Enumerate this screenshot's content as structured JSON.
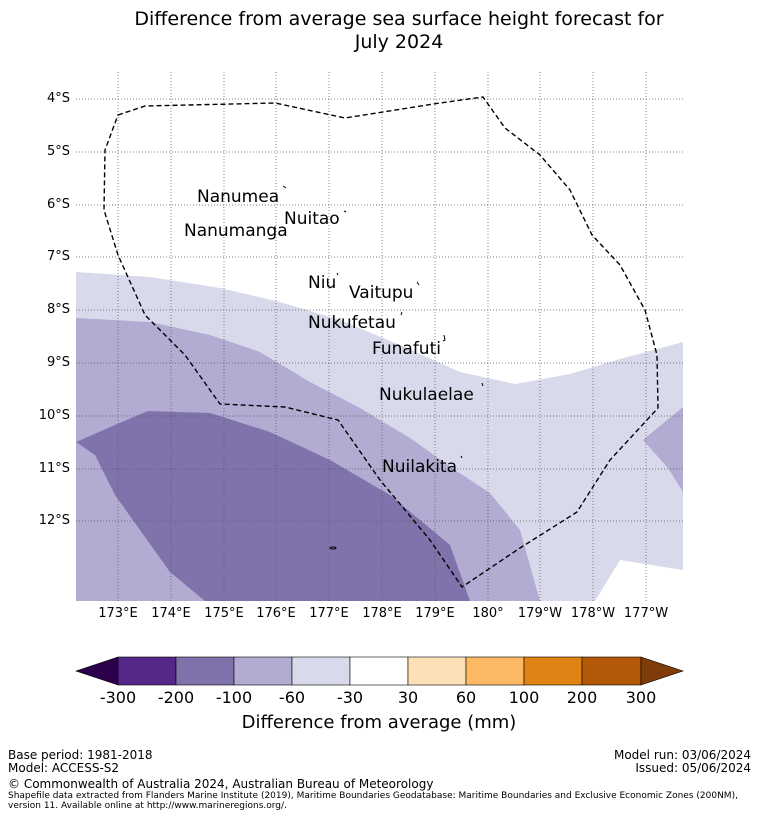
{
  "title_line1": "Difference from average sea surface height forecast for",
  "title_line2": "July 2024",
  "lat_labels": [
    "4°S",
    "5°S",
    "6°S",
    "7°S",
    "8°S",
    "9°S",
    "10°S",
    "11°S",
    "12°S"
  ],
  "lon_labels": [
    "173°E",
    "174°E",
    "175°E",
    "176°E",
    "177°E",
    "178°E",
    "179°E",
    "180°",
    "179°W",
    "178°W",
    "177°W"
  ],
  "islands": [
    "Nanumea",
    "Nuitao",
    "Nanumanga",
    "Niu",
    "Vaitupu",
    "Nukufetau",
    "Funafuti",
    "Nukulaelae",
    "Nuilakita"
  ],
  "colorbar": {
    "ticks": [
      "-300",
      "-200",
      "-100",
      "-60",
      "-30",
      "30",
      "60",
      "100",
      "200",
      "300"
    ],
    "colors": {
      "below_min": "#2d004b",
      "b1": "#542788",
      "b2": "#8073ac",
      "b3": "#b2abd2",
      "b4": "#d8daeb",
      "b5": "#ffffff",
      "b6": "#fee0b6",
      "b7": "#fdb863",
      "b8": "#e08214",
      "b9": "#b35806",
      "above_max": "#7f3b08"
    },
    "title": "Difference from average (mm)"
  },
  "footer": {
    "base_period": "Base period: 1981-2018",
    "model": "Model: ACCESS-S2",
    "model_run": "Model run: 03/06/2024",
    "issued": "Issued: 05/06/2024",
    "copyright": "© Commonwealth of Australia 2024, Australian Bureau of Meteorology",
    "shapefile_line1": "Shapefile data extracted from Flanders Marine Institute (2019), Maritime Boundaries Geodatabase: Maritime Boundaries and Exclusive Economic Zones (200NM),",
    "shapefile_line2": "version 11. Available online at http://www.marineregions.org/."
  }
}
